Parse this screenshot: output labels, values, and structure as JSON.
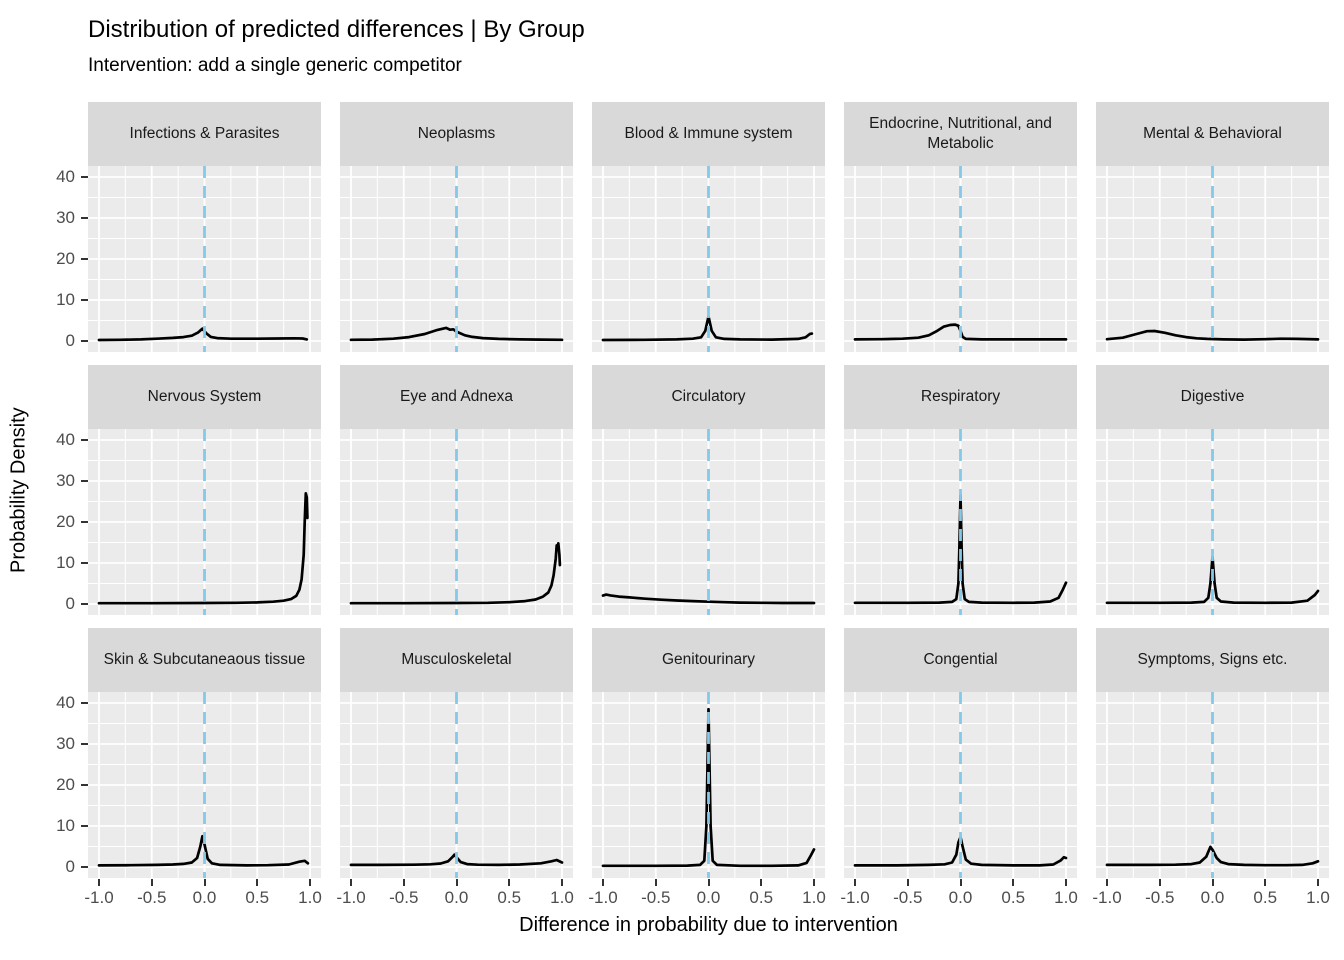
{
  "title": "Distribution of predicted differences | By Group",
  "subtitle": "Intervention: add a single generic competitor",
  "axes": {
    "x_label": "Difference in probability due to intervention",
    "y_label": "Probability Density",
    "x_ticks": [
      "-1.0",
      "-0.5",
      "0.0",
      "0.5",
      "1.0"
    ],
    "y_ticks": [
      "0",
      "10",
      "20",
      "30",
      "40"
    ]
  },
  "colors": {
    "panel_bg": "#EBEBEB",
    "strip_bg": "#D9D9D9",
    "grid": "#FFFFFF",
    "curve": "#000000",
    "vline": "#85C9E8",
    "axis_text": "#4D4D4D",
    "tick_mark": "#333333",
    "strip_text": "#1A1A1A"
  },
  "chart_data": {
    "type": "line",
    "subtype": "faceted density curves",
    "layout": {
      "rows": 3,
      "cols": 5
    },
    "xlim": [
      -1,
      1
    ],
    "ylim": [
      0,
      40
    ],
    "vline_x": 0,
    "grid": {
      "x_major": [
        -1,
        -0.5,
        0,
        0.5,
        1
      ],
      "x_minor": [
        -0.75,
        -0.25,
        0.25,
        0.75
      ],
      "y_major": [
        0,
        10,
        20,
        30,
        40
      ],
      "y_minor": [
        5,
        15,
        25,
        35
      ]
    },
    "facets": [
      {
        "label": "Infections & Parasites",
        "points": [
          [
            -1,
            0.25
          ],
          [
            -0.8,
            0.3
          ],
          [
            -0.6,
            0.4
          ],
          [
            -0.45,
            0.55
          ],
          [
            -0.3,
            0.75
          ],
          [
            -0.2,
            0.95
          ],
          [
            -0.12,
            1.3
          ],
          [
            -0.06,
            2.1
          ],
          [
            -0.02,
            3.0
          ],
          [
            0.02,
            1.8
          ],
          [
            0.06,
            1.0
          ],
          [
            0.12,
            0.7
          ],
          [
            0.25,
            0.55
          ],
          [
            0.5,
            0.55
          ],
          [
            0.7,
            0.6
          ],
          [
            0.85,
            0.65
          ],
          [
            0.93,
            0.6
          ],
          [
            0.97,
            0.4
          ]
        ]
      },
      {
        "label": "Neoplasms",
        "points": [
          [
            -1,
            0.3
          ],
          [
            -0.8,
            0.35
          ],
          [
            -0.6,
            0.55
          ],
          [
            -0.45,
            0.95
          ],
          [
            -0.3,
            1.7
          ],
          [
            -0.18,
            2.7
          ],
          [
            -0.1,
            3.2
          ],
          [
            -0.06,
            2.75
          ],
          [
            -0.03,
            2.85
          ],
          [
            0,
            2.3
          ],
          [
            0.08,
            1.4
          ],
          [
            0.15,
            1.0
          ],
          [
            0.25,
            0.7
          ],
          [
            0.4,
            0.5
          ],
          [
            0.6,
            0.4
          ],
          [
            0.8,
            0.35
          ],
          [
            1,
            0.3
          ]
        ]
      },
      {
        "label": "Blood & Immune system",
        "points": [
          [
            -1,
            0.25
          ],
          [
            -0.6,
            0.3
          ],
          [
            -0.3,
            0.4
          ],
          [
            -0.15,
            0.55
          ],
          [
            -0.07,
            0.9
          ],
          [
            -0.03,
            2.5
          ],
          [
            0,
            6.0
          ],
          [
            0.03,
            2.5
          ],
          [
            0.07,
            0.9
          ],
          [
            0.15,
            0.5
          ],
          [
            0.3,
            0.4
          ],
          [
            0.6,
            0.35
          ],
          [
            0.85,
            0.5
          ],
          [
            0.92,
            0.9
          ],
          [
            0.96,
            1.7
          ],
          [
            0.98,
            1.8
          ]
        ]
      },
      {
        "label": "Endocrine, Nutritional, and Metabolic",
        "points": [
          [
            -1,
            0.4
          ],
          [
            -0.75,
            0.45
          ],
          [
            -0.55,
            0.55
          ],
          [
            -0.4,
            0.8
          ],
          [
            -0.3,
            1.4
          ],
          [
            -0.22,
            2.5
          ],
          [
            -0.16,
            3.5
          ],
          [
            -0.1,
            3.9
          ],
          [
            -0.05,
            4.0
          ],
          [
            -0.02,
            3.7
          ],
          [
            0,
            2.5
          ],
          [
            0.02,
            1.0
          ],
          [
            0.05,
            0.5
          ],
          [
            0.2,
            0.4
          ],
          [
            0.5,
            0.4
          ],
          [
            0.8,
            0.4
          ],
          [
            1,
            0.4
          ]
        ]
      },
      {
        "label": "Mental & Behavioral",
        "points": [
          [
            -1,
            0.45
          ],
          [
            -0.85,
            0.8
          ],
          [
            -0.72,
            1.7
          ],
          [
            -0.62,
            2.4
          ],
          [
            -0.55,
            2.45
          ],
          [
            -0.45,
            2.0
          ],
          [
            -0.35,
            1.4
          ],
          [
            -0.25,
            0.95
          ],
          [
            -0.15,
            0.65
          ],
          [
            -0.05,
            0.5
          ],
          [
            0.1,
            0.4
          ],
          [
            0.3,
            0.35
          ],
          [
            0.5,
            0.45
          ],
          [
            0.65,
            0.55
          ],
          [
            0.8,
            0.5
          ],
          [
            1,
            0.4
          ]
        ]
      },
      {
        "label": "Nervous System",
        "points": [
          [
            -1,
            0.2
          ],
          [
            -0.5,
            0.2
          ],
          [
            0,
            0.25
          ],
          [
            0.3,
            0.3
          ],
          [
            0.5,
            0.4
          ],
          [
            0.65,
            0.55
          ],
          [
            0.75,
            0.8
          ],
          [
            0.82,
            1.2
          ],
          [
            0.87,
            2.0
          ],
          [
            0.9,
            3.5
          ],
          [
            0.92,
            6
          ],
          [
            0.94,
            12
          ],
          [
            0.95,
            20
          ],
          [
            0.96,
            27
          ],
          [
            0.97,
            26
          ],
          [
            0.975,
            21
          ]
        ]
      },
      {
        "label": "Eye and Adnexa",
        "points": [
          [
            -1,
            0.2
          ],
          [
            -0.5,
            0.2
          ],
          [
            0,
            0.25
          ],
          [
            0.3,
            0.3
          ],
          [
            0.5,
            0.45
          ],
          [
            0.65,
            0.7
          ],
          [
            0.75,
            1.1
          ],
          [
            0.82,
            1.8
          ],
          [
            0.87,
            2.8
          ],
          [
            0.9,
            4.5
          ],
          [
            0.92,
            7
          ],
          [
            0.94,
            11
          ],
          [
            0.95,
            14.3
          ],
          [
            0.958,
            13.2
          ],
          [
            0.965,
            14.8
          ],
          [
            0.975,
            12
          ],
          [
            0.98,
            9.5
          ]
        ]
      },
      {
        "label": "Circulatory",
        "points": [
          [
            -1,
            2.05
          ],
          [
            -0.97,
            2.3
          ],
          [
            -0.93,
            2.1
          ],
          [
            -0.85,
            1.8
          ],
          [
            -0.75,
            1.6
          ],
          [
            -0.6,
            1.3
          ],
          [
            -0.45,
            1.05
          ],
          [
            -0.3,
            0.85
          ],
          [
            -0.15,
            0.7
          ],
          [
            0,
            0.55
          ],
          [
            0.15,
            0.45
          ],
          [
            0.3,
            0.35
          ],
          [
            0.5,
            0.3
          ],
          [
            0.7,
            0.25
          ],
          [
            1,
            0.25
          ]
        ]
      },
      {
        "label": "Respiratory",
        "points": [
          [
            -1,
            0.3
          ],
          [
            -0.5,
            0.3
          ],
          [
            -0.2,
            0.35
          ],
          [
            -0.08,
            0.5
          ],
          [
            -0.04,
            1.2
          ],
          [
            -0.02,
            5
          ],
          [
            -0.01,
            14
          ],
          [
            0,
            26.5
          ],
          [
            0.01,
            14
          ],
          [
            0.02,
            5
          ],
          [
            0.04,
            1.2
          ],
          [
            0.08,
            0.5
          ],
          [
            0.2,
            0.35
          ],
          [
            0.5,
            0.3
          ],
          [
            0.7,
            0.35
          ],
          [
            0.85,
            0.6
          ],
          [
            0.93,
            1.5
          ],
          [
            0.97,
            3.5
          ],
          [
            1,
            5.2
          ]
        ]
      },
      {
        "label": "Digestive",
        "points": [
          [
            -1,
            0.3
          ],
          [
            -0.5,
            0.3
          ],
          [
            -0.2,
            0.35
          ],
          [
            -0.08,
            0.5
          ],
          [
            -0.04,
            1.5
          ],
          [
            -0.02,
            5
          ],
          [
            0,
            11.5
          ],
          [
            0.02,
            5
          ],
          [
            0.04,
            1.5
          ],
          [
            0.08,
            0.6
          ],
          [
            0.2,
            0.35
          ],
          [
            0.5,
            0.3
          ],
          [
            0.75,
            0.35
          ],
          [
            0.9,
            0.8
          ],
          [
            0.97,
            2.2
          ],
          [
            1,
            3.2
          ]
        ]
      },
      {
        "label": "Skin & Subcutaneaous tissue",
        "points": [
          [
            -1,
            0.4
          ],
          [
            -0.7,
            0.45
          ],
          [
            -0.45,
            0.5
          ],
          [
            -0.3,
            0.6
          ],
          [
            -0.2,
            0.75
          ],
          [
            -0.12,
            1.1
          ],
          [
            -0.07,
            2.2
          ],
          [
            -0.04,
            5
          ],
          [
            -0.02,
            7.5
          ],
          [
            0,
            5.5
          ],
          [
            0.03,
            2
          ],
          [
            0.07,
            0.9
          ],
          [
            0.15,
            0.5
          ],
          [
            0.4,
            0.4
          ],
          [
            0.6,
            0.45
          ],
          [
            0.8,
            0.6
          ],
          [
            0.9,
            1.3
          ],
          [
            0.95,
            1.5
          ],
          [
            0.98,
            0.9
          ]
        ]
      },
      {
        "label": "Musculoskeletal",
        "points": [
          [
            -1,
            0.5
          ],
          [
            -0.7,
            0.5
          ],
          [
            -0.4,
            0.55
          ],
          [
            -0.25,
            0.65
          ],
          [
            -0.15,
            0.85
          ],
          [
            -0.08,
            1.4
          ],
          [
            -0.04,
            2.4
          ],
          [
            -0.02,
            3.0
          ],
          [
            0,
            2.4
          ],
          [
            0.04,
            1.2
          ],
          [
            0.1,
            0.7
          ],
          [
            0.2,
            0.55
          ],
          [
            0.4,
            0.5
          ],
          [
            0.6,
            0.6
          ],
          [
            0.8,
            0.9
          ],
          [
            0.9,
            1.4
          ],
          [
            0.95,
            1.7
          ],
          [
            1,
            1.1
          ]
        ]
      },
      {
        "label": "Genitourinary",
        "points": [
          [
            -1,
            0.3
          ],
          [
            -0.5,
            0.3
          ],
          [
            -0.2,
            0.35
          ],
          [
            -0.08,
            0.5
          ],
          [
            -0.04,
            1.5
          ],
          [
            -0.02,
            10
          ],
          [
            0,
            38.5
          ],
          [
            0.02,
            10
          ],
          [
            0.04,
            1.5
          ],
          [
            0.08,
            0.5
          ],
          [
            0.3,
            0.3
          ],
          [
            0.6,
            0.3
          ],
          [
            0.85,
            0.4
          ],
          [
            0.93,
            1.0
          ],
          [
            0.97,
            2.8
          ],
          [
            1,
            4.3
          ]
        ]
      },
      {
        "label": "Congential",
        "points": [
          [
            -1,
            0.4
          ],
          [
            -0.6,
            0.4
          ],
          [
            -0.3,
            0.5
          ],
          [
            -0.15,
            0.65
          ],
          [
            -0.08,
            1.1
          ],
          [
            -0.04,
            3
          ],
          [
            -0.02,
            6
          ],
          [
            0,
            7.3
          ],
          [
            0.02,
            5
          ],
          [
            0.05,
            1.8
          ],
          [
            0.1,
            0.8
          ],
          [
            0.2,
            0.5
          ],
          [
            0.5,
            0.4
          ],
          [
            0.75,
            0.4
          ],
          [
            0.88,
            0.6
          ],
          [
            0.95,
            1.6
          ],
          [
            0.98,
            2.4
          ],
          [
            1,
            2.2
          ]
        ]
      },
      {
        "label": "Symptoms, Signs etc.",
        "points": [
          [
            -1,
            0.5
          ],
          [
            -0.6,
            0.5
          ],
          [
            -0.35,
            0.55
          ],
          [
            -0.2,
            0.7
          ],
          [
            -0.12,
            1.1
          ],
          [
            -0.06,
            2.5
          ],
          [
            -0.02,
            4.9
          ],
          [
            0,
            4.2
          ],
          [
            0.04,
            2.2
          ],
          [
            0.08,
            1.2
          ],
          [
            0.15,
            0.7
          ],
          [
            0.3,
            0.5
          ],
          [
            0.5,
            0.45
          ],
          [
            0.7,
            0.45
          ],
          [
            0.85,
            0.5
          ],
          [
            0.95,
            0.9
          ],
          [
            1,
            1.4
          ]
        ]
      }
    ]
  }
}
